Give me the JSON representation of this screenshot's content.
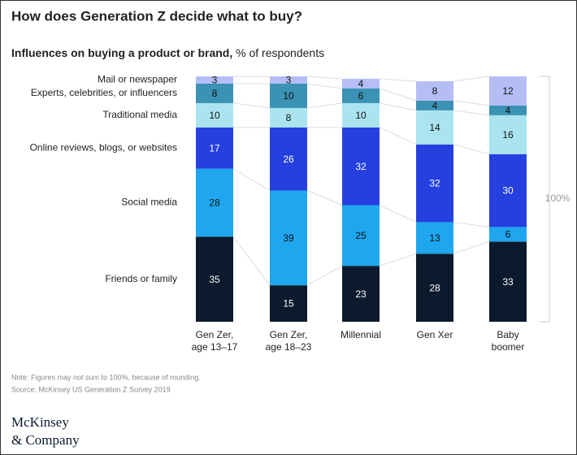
{
  "chart_data": {
    "type": "stacked-bar",
    "title": "How does Generation Z decide what to buy?",
    "subtitle_bold": "Influences on buying a product or brand,",
    "subtitle": "% of respondents",
    "categories": [
      "Gen Zer,\nage 13–17",
      "Gen Zer,\nage 18–23",
      "Millennial",
      "Gen Xer",
      "Baby\nboomer"
    ],
    "series": [
      {
        "name": "Friends or family",
        "color": "#0b1a2c",
        "values": [
          35,
          15,
          23,
          28,
          33
        ]
      },
      {
        "name": "Social media",
        "color": "#1ea6ee",
        "values": [
          28,
          39,
          25,
          13,
          6
        ]
      },
      {
        "name": "Online reviews, blogs, or websites",
        "color": "#2540df",
        "values": [
          17,
          26,
          32,
          32,
          30
        ]
      },
      {
        "name": "Traditional media",
        "color": "#abe4f1",
        "values": [
          10,
          8,
          10,
          14,
          16
        ]
      },
      {
        "name": "Experts, celebrities, or influencers",
        "color": "#3a92b4",
        "values": [
          8,
          10,
          6,
          4,
          4
        ]
      },
      {
        "name": "Mail or newspaper",
        "color": "#b4bef5",
        "values": [
          3,
          3,
          4,
          8,
          12
        ]
      }
    ],
    "bracket_label": "100%",
    "note": "Note: Figures may not sum to 100%, because of rounding.",
    "source": "Source: McKinsey US Generation Z Survey 2019"
  },
  "logo": [
    "McKinsey",
    "& Company"
  ]
}
